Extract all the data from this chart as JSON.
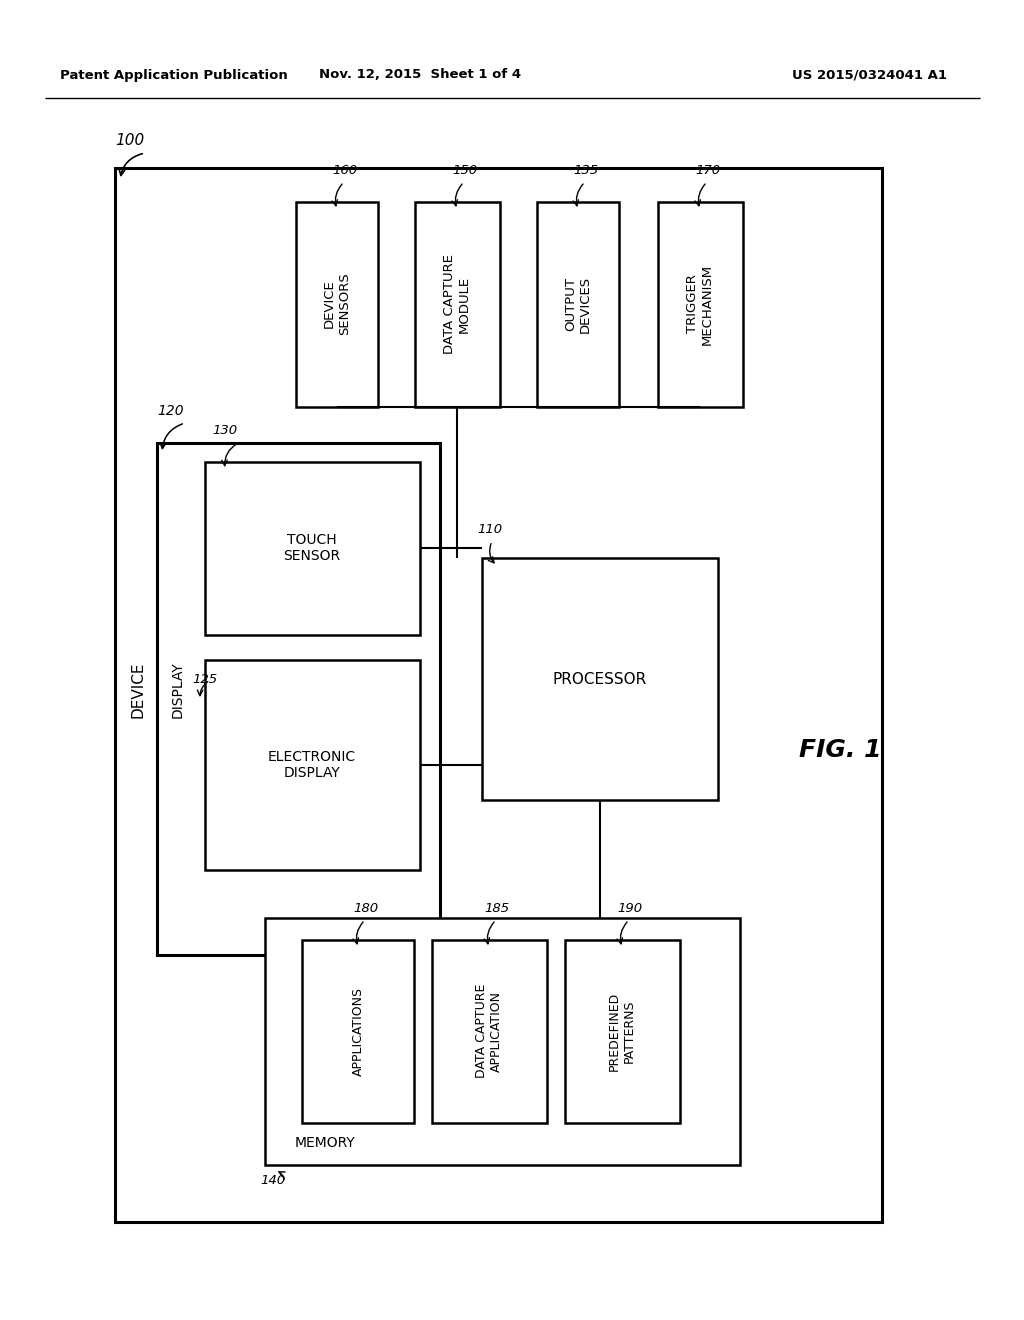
{
  "bg_color": "#ffffff",
  "header_left": "Patent Application Publication",
  "header_center": "Nov. 12, 2015  Sheet 1 of 4",
  "header_right": "US 2015/0324041 A1",
  "fig_label": "FIG. 1"
}
